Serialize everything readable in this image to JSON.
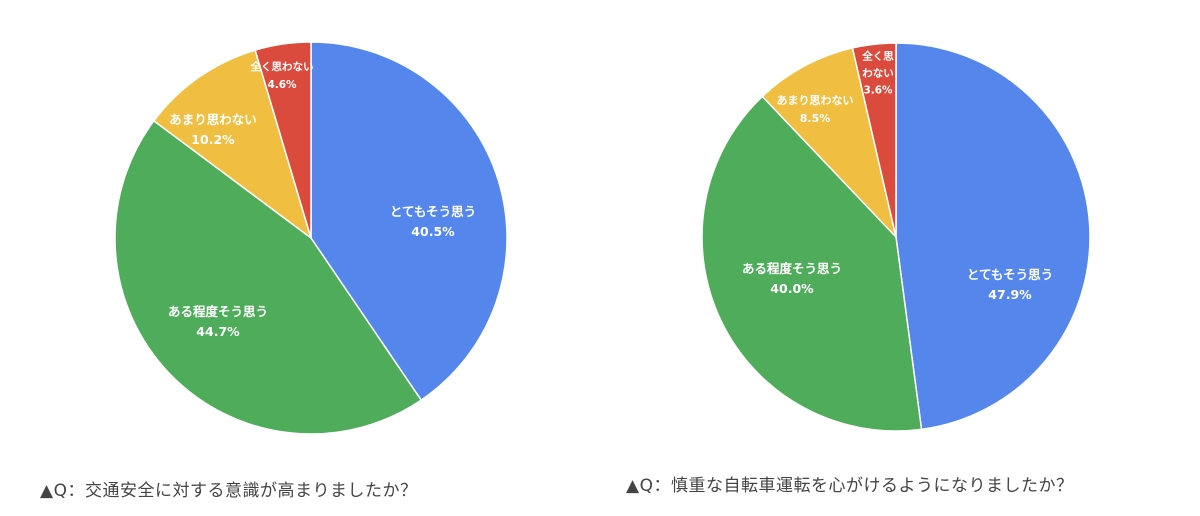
{
  "chart_data": [
    {
      "type": "pie",
      "title": "▲Q：交通安全に対する意識が高まりましたか？",
      "categories": [
        "とてもそう思う",
        "ある程度そう思う",
        "あまり思わない",
        "全く思わない"
      ],
      "values": [
        40.5,
        44.7,
        10.2,
        4.6
      ],
      "labels": [
        "40.5%",
        "44.7%",
        "10.2%",
        "4.6%"
      ],
      "colors": [
        "#5586ec",
        "#4fac5b",
        "#f0be41",
        "#da4b3d"
      ]
    },
    {
      "type": "pie",
      "title": "▲Q：慎重な自転車運転を心がけるようになりましたか？",
      "categories": [
        "とてもそう思う",
        "ある程度そう思う",
        "あまり思わない",
        "全く思わない"
      ],
      "values": [
        47.9,
        40.0,
        8.5,
        3.6
      ],
      "labels": [
        "47.9%",
        "40.0%",
        "8.5%",
        "3.6%"
      ],
      "colors": [
        "#5586ec",
        "#4fac5b",
        "#f0be41",
        "#da4b3d"
      ]
    }
  ]
}
